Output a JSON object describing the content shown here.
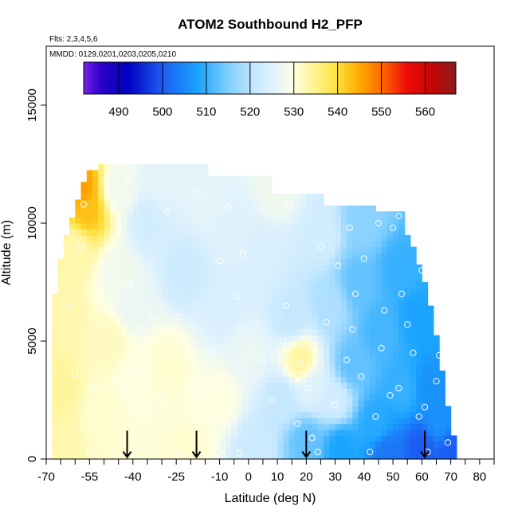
{
  "chart_data": {
    "type": "heatmap",
    "title": "ATOM2 Southbound H2_PFP",
    "flights_note": "Flts: 2,3,4,5,6",
    "dates_note": "MMDD: 0129,0201,0203,0205,0210",
    "xlabel": "Latitude (deg N)",
    "ylabel": "Altitude (m)",
    "xlim": [
      -70,
      85
    ],
    "ylim": [
      0,
      17500
    ],
    "x_ticks": [
      -70,
      -55,
      -40,
      -25,
      -10,
      0,
      10,
      20,
      30,
      40,
      50,
      60,
      70,
      80
    ],
    "x_tick_labels": [
      "-70",
      "-55",
      "-40",
      "-25",
      "-10",
      "0",
      "10",
      "20",
      "30",
      "40",
      "50",
      "60",
      "70",
      "80"
    ],
    "x_minor_ticks": [
      -65,
      -60,
      -50,
      -45,
      -35,
      -30,
      -20,
      -15,
      -5,
      5,
      15,
      25,
      35,
      45,
      55,
      65,
      75,
      85
    ],
    "y_ticks": [
      0,
      5000,
      10000,
      15000
    ],
    "y_tick_labels": [
      "0",
      "5000",
      "10000",
      "15000"
    ],
    "colorbar": {
      "min": 482,
      "max": 567,
      "ticks": [
        490,
        500,
        510,
        520,
        530,
        540,
        550,
        560
      ],
      "tick_labels": [
        "490",
        "500",
        "510",
        "520",
        "530",
        "540",
        "550",
        "560"
      ],
      "stops": [
        [
          482,
          "#7a22e8"
        ],
        [
          486,
          "#2a00c8"
        ],
        [
          492,
          "#0000c0"
        ],
        [
          500,
          "#1c5cf2"
        ],
        [
          508,
          "#1aa4ff"
        ],
        [
          515,
          "#7fceff"
        ],
        [
          521,
          "#c6e8ff"
        ],
        [
          526,
          "#e4f4fb"
        ],
        [
          530,
          "#ffffe2"
        ],
        [
          535,
          "#fff28a"
        ],
        [
          540,
          "#ffe03a"
        ],
        [
          545,
          "#ffaa00"
        ],
        [
          550,
          "#ff6a00"
        ],
        [
          556,
          "#ee0a0a"
        ],
        [
          562,
          "#c00808"
        ],
        [
          567,
          "#8a1c1c"
        ]
      ]
    },
    "grid": false,
    "heatmap_description": "Gridded mixing-ratio field; approximated by a domain envelope and value anchors",
    "envelope_left": [
      [
        -68,
        0
      ],
      [
        -68,
        6000
      ],
      [
        -66,
        8000
      ],
      [
        -63,
        9500
      ],
      [
        -60,
        10500
      ],
      [
        -58,
        11500
      ],
      [
        -55,
        12200
      ],
      [
        -51,
        12500
      ]
    ],
    "envelope_top": [
      [
        -51,
        12500
      ],
      [
        -13,
        12500
      ],
      [
        -13,
        12000
      ],
      [
        8,
        12000
      ],
      [
        8,
        11300
      ],
      [
        26,
        11300
      ],
      [
        26,
        10800
      ],
      [
        44,
        10800
      ],
      [
        44,
        10500
      ],
      [
        54,
        10500
      ],
      [
        54,
        9500
      ],
      [
        56,
        9500
      ]
    ],
    "envelope_right": [
      [
        56,
        9500
      ],
      [
        60,
        8000
      ],
      [
        64,
        6000
      ],
      [
        68,
        3000
      ],
      [
        70,
        1500
      ],
      [
        72,
        500
      ],
      [
        72,
        0
      ]
    ],
    "field_anchors": [
      [
        -66,
        500,
        533
      ],
      [
        -66,
        3000,
        534
      ],
      [
        -64,
        6000,
        533
      ],
      [
        -60,
        9000,
        533
      ],
      [
        -58,
        11500,
        546
      ],
      [
        -56,
        10500,
        543
      ],
      [
        -50,
        2000,
        531
      ],
      [
        -48,
        5000,
        532
      ],
      [
        -45,
        8000,
        528
      ],
      [
        -45,
        11500,
        528
      ],
      [
        -40,
        3500,
        530
      ],
      [
        -40,
        6500,
        527
      ],
      [
        -35,
        10000,
        523
      ],
      [
        -30,
        12000,
        526
      ],
      [
        -28,
        4000,
        531
      ],
      [
        -22,
        8000,
        522
      ],
      [
        -20,
        500,
        531
      ],
      [
        -15,
        11000,
        526
      ],
      [
        -10,
        2500,
        530
      ],
      [
        -8,
        6500,
        524
      ],
      [
        -5,
        9500,
        525
      ],
      [
        0,
        4500,
        527
      ],
      [
        2,
        500,
        522
      ],
      [
        5,
        8500,
        524
      ],
      [
        10,
        11500,
        528
      ],
      [
        12,
        2500,
        521
      ],
      [
        15,
        6000,
        521
      ],
      [
        18,
        4200,
        534
      ],
      [
        20,
        800,
        513
      ],
      [
        22,
        3000,
        525
      ],
      [
        25,
        9500,
        523
      ],
      [
        28,
        6500,
        519
      ],
      [
        30,
        2500,
        523
      ],
      [
        32,
        500,
        508
      ],
      [
        36,
        4000,
        513
      ],
      [
        38,
        7500,
        513
      ],
      [
        40,
        10000,
        516
      ],
      [
        44,
        1500,
        509
      ],
      [
        46,
        5500,
        511
      ],
      [
        48,
        300,
        503
      ],
      [
        52,
        8000,
        510
      ],
      [
        54,
        3000,
        510
      ],
      [
        58,
        6000,
        508
      ],
      [
        60,
        500,
        500
      ],
      [
        62,
        3000,
        506
      ],
      [
        66,
        1500,
        506
      ],
      [
        70,
        400,
        500
      ]
    ],
    "samples": [
      [
        -63,
        10400
      ],
      [
        -57,
        10800
      ],
      [
        -42,
        11800
      ],
      [
        -28,
        10500
      ],
      [
        -17,
        11300
      ],
      [
        -7,
        10700
      ],
      [
        5,
        10500
      ],
      [
        -62,
        6500
      ],
      [
        -58,
        9000
      ],
      [
        -41,
        7400
      ],
      [
        -34,
        6000
      ],
      [
        -24,
        6000
      ],
      [
        -13,
        4600
      ],
      [
        -4,
        6900
      ],
      [
        -60,
        3600
      ],
      [
        -54,
        3000
      ],
      [
        -46,
        3300
      ],
      [
        -41,
        3700
      ],
      [
        -30,
        2600
      ],
      [
        -19,
        1800
      ],
      [
        -12,
        1600
      ],
      [
        -55,
        300
      ],
      [
        -40,
        300
      ],
      [
        -24,
        200
      ],
      [
        -9,
        200
      ],
      [
        -3,
        250
      ],
      [
        5,
        4200
      ],
      [
        8,
        2500
      ],
      [
        12,
        5000
      ],
      [
        13,
        6500
      ],
      [
        17,
        1500
      ],
      [
        18,
        4100
      ],
      [
        21,
        3000
      ],
      [
        22,
        900
      ],
      [
        24,
        300
      ],
      [
        27,
        5800
      ],
      [
        30,
        2300
      ],
      [
        34,
        4200
      ],
      [
        36,
        5500
      ],
      [
        37,
        7000
      ],
      [
        39,
        3500
      ],
      [
        40,
        8500
      ],
      [
        42,
        300
      ],
      [
        44,
        1800
      ],
      [
        46,
        4700
      ],
      [
        47,
        6300
      ],
      [
        49,
        2700
      ],
      [
        50,
        9800
      ],
      [
        52,
        3000
      ],
      [
        53,
        7000
      ],
      [
        55,
        5700
      ],
      [
        57,
        4500
      ],
      [
        59,
        1800
      ],
      [
        60,
        8000
      ],
      [
        61,
        2200
      ],
      [
        62,
        300
      ],
      [
        65,
        3300
      ],
      [
        66,
        4400
      ],
      [
        69,
        700
      ],
      [
        14,
        10800
      ],
      [
        25,
        9000
      ],
      [
        31,
        8200
      ],
      [
        35,
        9800
      ],
      [
        45,
        10000
      ],
      [
        52,
        10300
      ],
      [
        -2,
        8700
      ],
      [
        -10,
        8400
      ]
    ],
    "flight_arrows_lat": [
      -42,
      -18,
      20,
      61
    ]
  }
}
